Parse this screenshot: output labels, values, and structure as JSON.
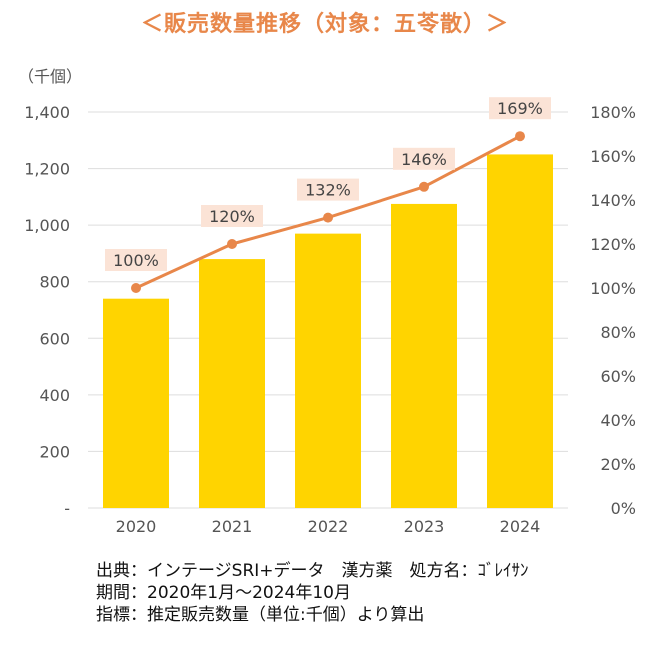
{
  "title": "＜販売数量推移（対象：五苓散）＞",
  "colors": {
    "title": "#E8874A",
    "bar": "#FFD400",
    "line": "#E8874A",
    "label_bg": "#FBE3D6",
    "grid": "#DDDDDD"
  },
  "chart_data": {
    "type": "bar",
    "title": "＜販売数量推移（対象：五苓散）＞",
    "y_unit": "（千個）",
    "categories": [
      "2020",
      "2021",
      "2022",
      "2023",
      "2024"
    ],
    "series": [
      {
        "values": [
          740,
          880,
          970,
          1075,
          1250
        ],
        "axis": "left"
      },
      {
        "type": "line",
        "values": [
          100,
          120,
          132,
          146,
          169
        ],
        "axis": "right"
      }
    ],
    "data_labels": [
      "100%",
      "120%",
      "132%",
      "146%",
      "169%"
    ],
    "ylim_left": [
      0,
      1400
    ],
    "ylim_right": [
      0,
      180
    ],
    "left_ticks": [
      "-",
      "200",
      "400",
      "600",
      "800",
      "1,000",
      "1,200",
      "1,400"
    ],
    "right_ticks": [
      "0%",
      "20%",
      "40%",
      "60%",
      "80%",
      "100%",
      "120%",
      "140%",
      "160%",
      "180%"
    ],
    "grid": true
  },
  "notes": [
    "出典：インテージSRI+データ　漢方薬　処方名：ｺﾞﾚｲｻﾝ",
    "期間：2020年1月～2024年10月",
    "指標：推定販売数量（単位:千個）より算出"
  ]
}
